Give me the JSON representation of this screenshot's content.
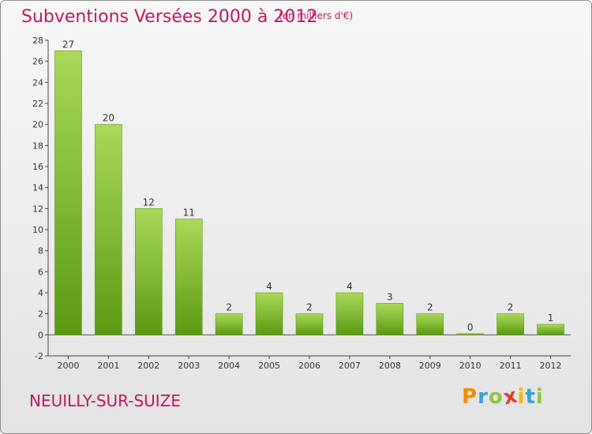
{
  "header": {
    "title": "Subventions Versées 2000 à 2012",
    "subtitle": "(en milliers d'€)"
  },
  "footer": {
    "town": "NEUILLY-SUR-SUIZE",
    "logo_letters": [
      "P",
      "r",
      "o",
      "x",
      "i",
      "t",
      "i"
    ],
    "logo_colors": [
      "#f28c00",
      "#3aa0d8",
      "#8cc63f",
      "#e03a3a",
      "#f6b800",
      "#3aa0d8",
      "#8cc63f"
    ]
  },
  "colors": {
    "bar_light": "#a9d95a",
    "bar_dark": "#5a9a12",
    "title": "#c0185d",
    "grid": "#d0d0d0"
  },
  "chart_data": {
    "type": "bar",
    "title": "Subventions Versées 2000 à 2012",
    "subtitle": "(en milliers d'€)",
    "categories": [
      "2000",
      "2001",
      "2002",
      "2003",
      "2004",
      "2005",
      "2006",
      "2007",
      "2008",
      "2009",
      "2010",
      "2011",
      "2012"
    ],
    "values": [
      27,
      20,
      12,
      11,
      2,
      4,
      2,
      4,
      3,
      2,
      0,
      2,
      1
    ],
    "ylim": [
      -2,
      28
    ],
    "yticks": [
      -2,
      0,
      2,
      4,
      6,
      8,
      10,
      12,
      14,
      16,
      18,
      20,
      22,
      24,
      26,
      28
    ],
    "grid": false,
    "data_labels": true
  }
}
